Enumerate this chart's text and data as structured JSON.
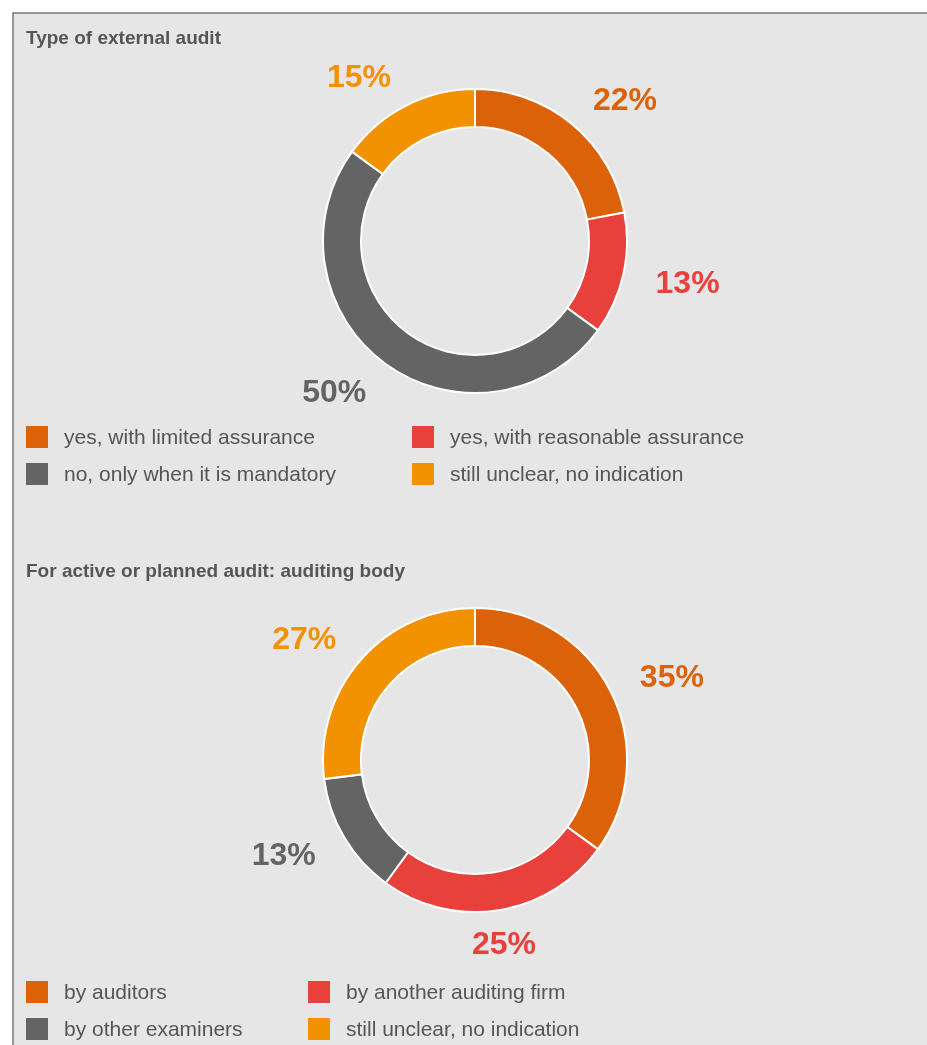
{
  "chart_data": [
    {
      "type": "donut",
      "title": "Type of external audit",
      "categories": [
        "yes, with limited assurance",
        "yes, with reasonable assurance",
        "no, only when it is mandatory",
        "still unclear, no indication"
      ],
      "values": [
        22,
        13,
        50,
        15
      ],
      "value_labels": [
        "22%",
        "13%",
        "50%",
        "15%"
      ],
      "colors": [
        "#dc6209",
        "#e8403a",
        "#646464",
        "#f39200"
      ],
      "legend": "bottom"
    },
    {
      "type": "donut",
      "title": "For active or planned audit: auditing body",
      "categories": [
        "by auditors",
        "by another auditing firm",
        "by other examiners",
        "still unclear, no indication"
      ],
      "values": [
        35,
        25,
        13,
        27
      ],
      "value_labels": [
        "35%",
        "25%",
        "13%",
        "27%"
      ],
      "colors": [
        "#dc6209",
        "#e8403a",
        "#646464",
        "#f39200"
      ],
      "legend": "bottom"
    }
  ]
}
